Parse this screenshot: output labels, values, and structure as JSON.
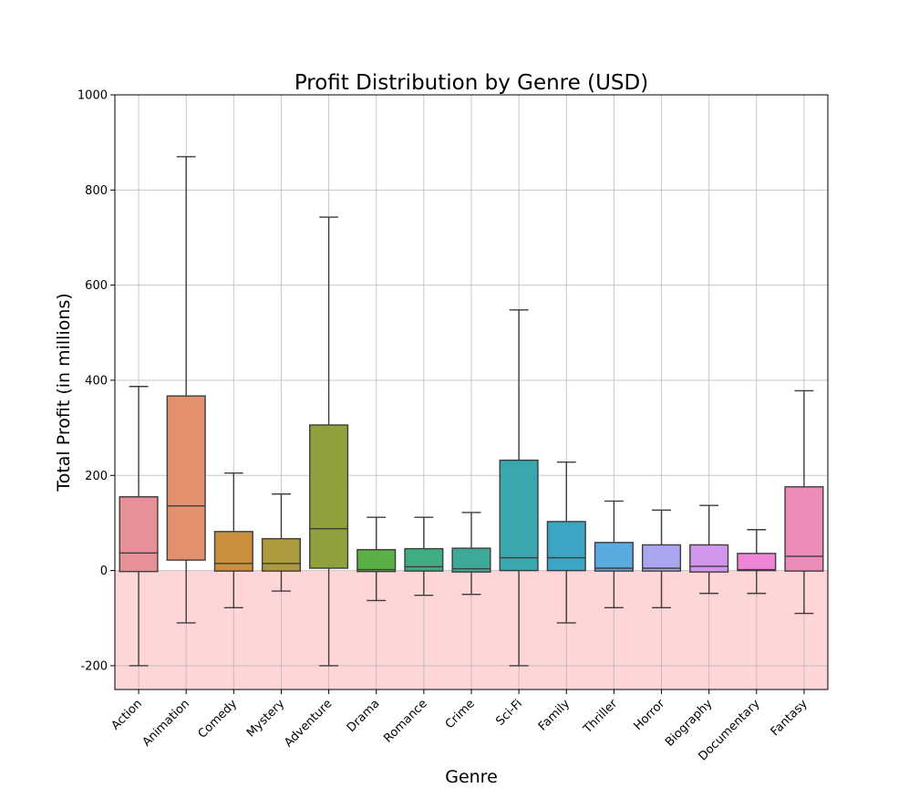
{
  "chart_data": {
    "type": "box",
    "title": "Profit Distribution by Genre (USD)",
    "xlabel": "Genre",
    "ylabel": "Total Profit (in millions)",
    "ylim": [
      -250,
      1000
    ],
    "yticks": [
      -200,
      0,
      200,
      400,
      600,
      800,
      1000
    ],
    "grid": true,
    "negative_region_color": "#ffd6d8",
    "categories": [
      "Action",
      "Animation",
      "Comedy",
      "Mystery",
      "Adventure",
      "Drama",
      "Romance",
      "Crime",
      "Sci-Fi",
      "Family",
      "Thriller",
      "Horror",
      "Biography",
      "Documentary",
      "Fantasy"
    ],
    "boxes": [
      {
        "genre": "Action",
        "whisker_low": -200,
        "q1": -2,
        "median": 37,
        "q3": 155,
        "whisker_high": 387,
        "color": "#e8909a"
      },
      {
        "genre": "Animation",
        "whisker_low": -110,
        "q1": 22,
        "median": 136,
        "q3": 367,
        "whisker_high": 870,
        "color": "#e2906e"
      },
      {
        "genre": "Comedy",
        "whisker_low": -78,
        "q1": -1,
        "median": 15,
        "q3": 82,
        "whisker_high": 205,
        "color": "#c98f3c"
      },
      {
        "genre": "Mystery",
        "whisker_low": -43,
        "q1": -1,
        "median": 15,
        "q3": 67,
        "whisker_high": 161,
        "color": "#ad9a3e"
      },
      {
        "genre": "Adventure",
        "whisker_low": -200,
        "q1": 5,
        "median": 88,
        "q3": 306,
        "whisker_high": 743,
        "color": "#8fa03c"
      },
      {
        "genre": "Drama",
        "whisker_low": -63,
        "q1": -2,
        "median": 2,
        "q3": 44,
        "whisker_high": 112,
        "color": "#5aaf45"
      },
      {
        "genre": "Romance",
        "whisker_low": -52,
        "q1": -1,
        "median": 8,
        "q3": 46,
        "whisker_high": 112,
        "color": "#3fad82"
      },
      {
        "genre": "Crime",
        "whisker_low": -50,
        "q1": -3,
        "median": 4,
        "q3": 47,
        "whisker_high": 122,
        "color": "#3daa99"
      },
      {
        "genre": "Sci-Fi",
        "whisker_low": -200,
        "q1": 0,
        "median": 27,
        "q3": 232,
        "whisker_high": 548,
        "color": "#3aa7ae"
      },
      {
        "genre": "Family",
        "whisker_low": -110,
        "q1": 0,
        "median": 27,
        "q3": 103,
        "whisker_high": 228,
        "color": "#3ba5c4"
      },
      {
        "genre": "Thriller",
        "whisker_low": -78,
        "q1": -1,
        "median": 5,
        "q3": 59,
        "whisker_high": 146,
        "color": "#5aaae0"
      },
      {
        "genre": "Horror",
        "whisker_low": -78,
        "q1": -1,
        "median": 5,
        "q3": 54,
        "whisker_high": 127,
        "color": "#a9a6ef"
      },
      {
        "genre": "Biography",
        "whisker_low": -48,
        "q1": -3,
        "median": 9,
        "q3": 54,
        "whisker_high": 137,
        "color": "#d195ec"
      },
      {
        "genre": "Documentary",
        "whisker_low": -48,
        "q1": 0,
        "median": 2,
        "q3": 36,
        "whisker_high": 86,
        "color": "#ee85d9"
      },
      {
        "genre": "Fantasy",
        "whisker_low": -90,
        "q1": -1,
        "median": 30,
        "q3": 176,
        "whisker_high": 378,
        "color": "#ec8cbb"
      }
    ]
  }
}
